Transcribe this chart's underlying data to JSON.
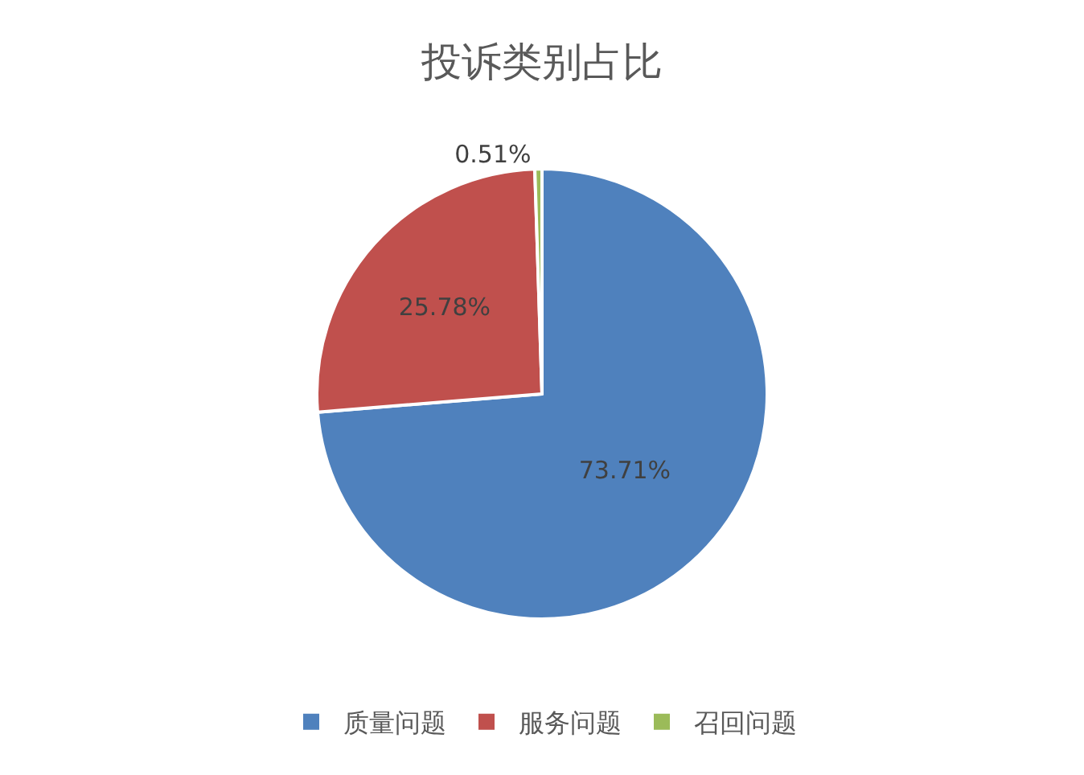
{
  "chart_data": {
    "type": "pie",
    "title": "投诉类别占比",
    "categories": [
      "质量问题",
      "服务问题",
      "召回问题"
    ],
    "values": [
      73.71,
      25.78,
      0.51
    ],
    "colors": [
      "#4f81bd",
      "#c0504d",
      "#9bbb59"
    ],
    "value_labels": [
      "73.71%",
      "25.78%",
      "0.51%"
    ],
    "legend": "bottom"
  }
}
